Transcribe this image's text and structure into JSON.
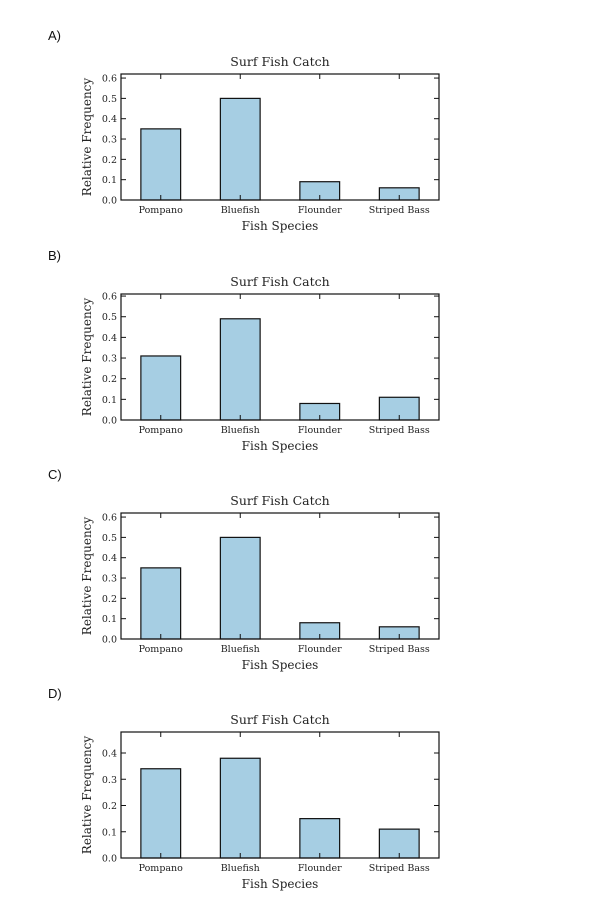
{
  "chart_data": [
    {
      "option": "A)",
      "type": "bar",
      "title": "Surf Fish Catch",
      "xlabel": "Fish Species",
      "ylabel": "Relative Frequency",
      "categories": [
        "Pompano",
        "Bluefish",
        "Flounder",
        "Striped Bass"
      ],
      "values": [
        0.35,
        0.5,
        0.09,
        0.06
      ],
      "ylim": [
        0,
        0.62
      ],
      "yticks": [
        "0.0",
        "0.1",
        "0.2",
        "0.3",
        "0.4",
        "0.5",
        "0.6"
      ],
      "bar_color": "#a6cee3"
    },
    {
      "option": "B)",
      "type": "bar",
      "title": "Surf Fish Catch",
      "xlabel": "Fish Species",
      "ylabel": "Relative Frequency",
      "categories": [
        "Pompano",
        "Bluefish",
        "Flounder",
        "Striped Bass"
      ],
      "values": [
        0.31,
        0.49,
        0.08,
        0.11
      ],
      "ylim": [
        0,
        0.61
      ],
      "yticks": [
        "0.0",
        "0.1",
        "0.2",
        "0.3",
        "0.4",
        "0.5",
        "0.6"
      ],
      "bar_color": "#a6cee3"
    },
    {
      "option": "C)",
      "type": "bar",
      "title": "Surf Fish Catch",
      "xlabel": "Fish Species",
      "ylabel": "Relative Frequency",
      "categories": [
        "Pompano",
        "Bluefish",
        "Flounder",
        "Striped Bass"
      ],
      "values": [
        0.35,
        0.5,
        0.08,
        0.06
      ],
      "ylim": [
        0,
        0.62
      ],
      "yticks": [
        "0.0",
        "0.1",
        "0.2",
        "0.3",
        "0.4",
        "0.5",
        "0.6"
      ],
      "bar_color": "#a6cee3"
    },
    {
      "option": "D)",
      "type": "bar",
      "title": "Surf Fish Catch",
      "xlabel": "Fish Species",
      "ylabel": "Relative Frequency",
      "categories": [
        "Pompano",
        "Bluefish",
        "Flounder",
        "Striped Bass"
      ],
      "values": [
        0.34,
        0.38,
        0.15,
        0.11
      ],
      "ylim": [
        0,
        0.48
      ],
      "yticks": [
        "0.0",
        "0.1",
        "0.2",
        "0.3",
        "0.4"
      ],
      "bar_color": "#a6cee3"
    }
  ]
}
